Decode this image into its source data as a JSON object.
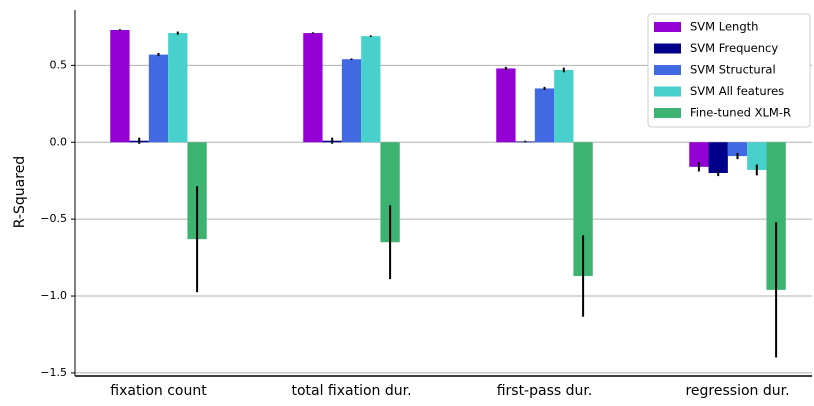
{
  "chart_data": {
    "type": "bar",
    "y_label": "R-Squared",
    "categories": [
      "fixation count",
      "total fixation dur.",
      "first-pass dur.",
      "regression dur."
    ],
    "series": [
      {
        "name": "SVM Length",
        "color": "#9400d3",
        "values": [
          0.73,
          0.71,
          0.48,
          -0.16
        ],
        "errors": [
          0.005,
          0.005,
          0.01,
          0.03
        ]
      },
      {
        "name": "SVM Frequency",
        "color": "#00008b",
        "values": [
          0.01,
          0.01,
          0.005,
          -0.2
        ],
        "errors": [
          0.02,
          0.02,
          0.005,
          0.02
        ]
      },
      {
        "name": "SVM Structural",
        "color": "#4169e1",
        "values": [
          0.57,
          0.54,
          0.35,
          -0.09
        ],
        "errors": [
          0.01,
          0.005,
          0.01,
          0.02
        ]
      },
      {
        "name": "SVM All features",
        "color": "#48d1cc",
        "values": [
          0.71,
          0.69,
          0.47,
          -0.18
        ],
        "errors": [
          0.01,
          0.005,
          0.015,
          0.035
        ]
      },
      {
        "name": "Fine-tuned XLM-R",
        "color": "#3cb371",
        "values": [
          -0.63,
          -0.65,
          -0.87,
          -0.96
        ],
        "errors": [
          0.345,
          0.24,
          0.265,
          0.44
        ]
      }
    ],
    "ylim": [
      -1.52,
      0.86
    ],
    "yticks": [
      {
        "value": -1.5,
        "label": "−1.5"
      },
      {
        "value": -1,
        "label": "−1.0"
      },
      {
        "value": -0.5,
        "label": "−0.5"
      },
      {
        "value": 0,
        "label": "0.0"
      },
      0.5
    ],
    "grid": true,
    "legend": "upper right"
  }
}
